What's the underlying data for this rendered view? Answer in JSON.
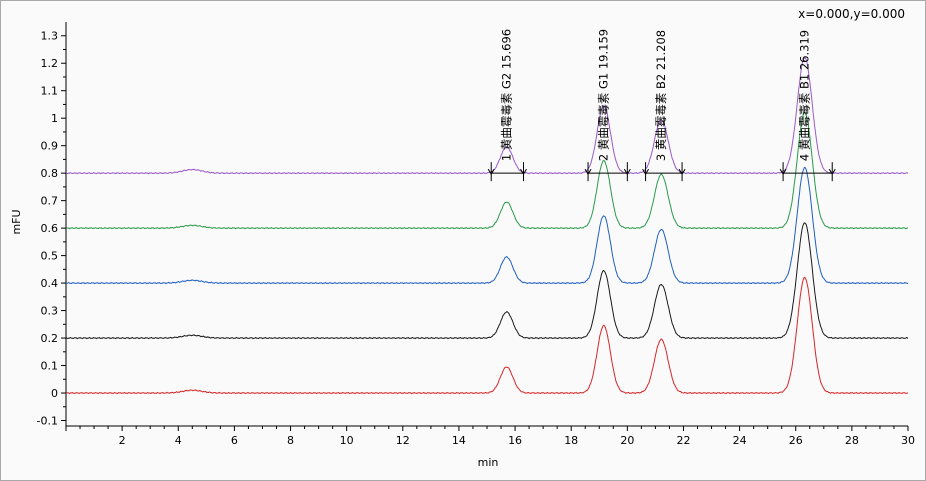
{
  "coord_readout": "x=0.000,y=0.000",
  "chart_data": {
    "type": "line",
    "xlabel": "min",
    "ylabel": "mFU",
    "xlim": [
      0,
      30
    ],
    "ylim": [
      -0.12,
      1.35
    ],
    "x_ticks": [
      2,
      4,
      6,
      8,
      10,
      12,
      14,
      16,
      18,
      20,
      22,
      24,
      26,
      28,
      30
    ],
    "y_ticks": [
      -0.1,
      0,
      0.1,
      0.2,
      0.3,
      0.4,
      0.5,
      0.6,
      0.7,
      0.8,
      0.9,
      1,
      1.1,
      1.2,
      1.3
    ],
    "y_tick_labels": [
      "-0.1",
      "0",
      "0.1",
      "0.2",
      "0.3",
      "0.4",
      "0.5",
      "0.6",
      "0.7",
      "0.8",
      "0.9",
      "1",
      "1.1",
      "1.2",
      "1.3"
    ],
    "grid": false,
    "series": [
      {
        "color": "#d62728",
        "baseline": 0.0,
        "peaks": [
          {
            "rt": 4.5,
            "height": 0.01
          },
          {
            "rt": 15.7,
            "height": 0.095
          },
          {
            "rt": 19.16,
            "height": 0.245
          },
          {
            "rt": 21.21,
            "height": 0.195
          },
          {
            "rt": 26.32,
            "height": 0.42
          }
        ]
      },
      {
        "color": "#1a1a1a",
        "baseline": 0.2,
        "peaks": [
          {
            "rt": 4.5,
            "height": 0.01
          },
          {
            "rt": 15.7,
            "height": 0.095
          },
          {
            "rt": 19.16,
            "height": 0.245
          },
          {
            "rt": 21.21,
            "height": 0.195
          },
          {
            "rt": 26.32,
            "height": 0.42
          }
        ]
      },
      {
        "color": "#1f5fbf",
        "baseline": 0.4,
        "peaks": [
          {
            "rt": 4.5,
            "height": 0.01
          },
          {
            "rt": 15.7,
            "height": 0.095
          },
          {
            "rt": 19.16,
            "height": 0.245
          },
          {
            "rt": 21.21,
            "height": 0.195
          },
          {
            "rt": 26.32,
            "height": 0.42
          }
        ]
      },
      {
        "color": "#2a9a4a",
        "baseline": 0.6,
        "peaks": [
          {
            "rt": 4.5,
            "height": 0.01
          },
          {
            "rt": 15.7,
            "height": 0.095
          },
          {
            "rt": 19.16,
            "height": 0.245
          },
          {
            "rt": 21.21,
            "height": 0.195
          },
          {
            "rt": 26.32,
            "height": 0.42
          }
        ]
      },
      {
        "color": "#9a59c8",
        "baseline": 0.8,
        "peaks": [
          {
            "rt": 4.5,
            "height": 0.013
          },
          {
            "rt": 15.7,
            "height": 0.095
          },
          {
            "rt": 19.16,
            "height": 0.245
          },
          {
            "rt": 21.21,
            "height": 0.195
          },
          {
            "rt": 26.32,
            "height": 0.42
          }
        ]
      }
    ],
    "peak_labels": [
      {
        "text": "1 黄曲霉毒素 G2 15.696",
        "rt": 15.696,
        "start": 15.15,
        "end": 16.3
      },
      {
        "text": "2 黄曲霉毒素 G1 19.159",
        "rt": 19.159,
        "start": 18.6,
        "end": 20.0
      },
      {
        "text": "3 黄曲霉毒素 B2 21.208",
        "rt": 21.208,
        "start": 20.65,
        "end": 21.95
      },
      {
        "text": "4 黄曲霉毒素 B1 26.319",
        "rt": 26.319,
        "start": 25.55,
        "end": 27.3
      }
    ]
  }
}
